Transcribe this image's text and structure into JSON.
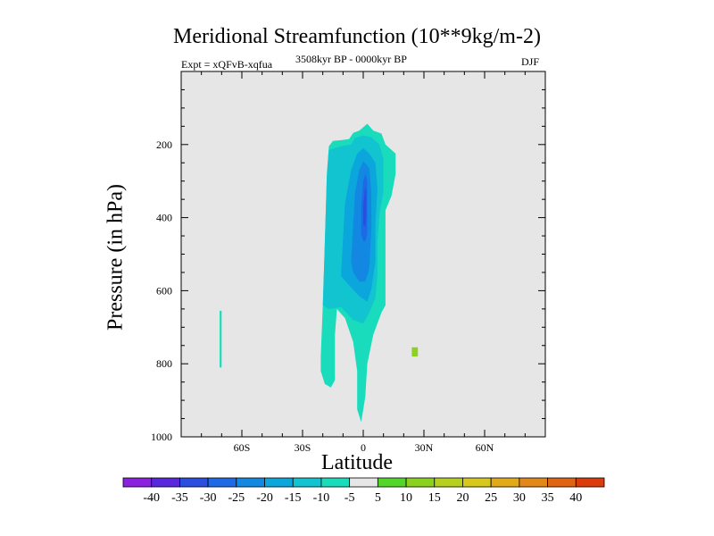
{
  "chart_data": {
    "type": "contour",
    "title": "Meridional Streamfunction (10**9kg/m-2)",
    "subtitle_left": "Expt = xQFvB-xqfua",
    "subtitle_center": "3508kyr BP - 0000kyr BP",
    "subtitle_right": "DJF",
    "xlabel": "Latitude",
    "ylabel": "Pressure (in hPa)",
    "xlim": [
      -90,
      90
    ],
    "ylim": [
      1000,
      0
    ],
    "x_ticks": [
      {
        "value": -60,
        "label": "60S"
      },
      {
        "value": -30,
        "label": "30S"
      },
      {
        "value": 0,
        "label": "0"
      },
      {
        "value": 30,
        "label": "30N"
      },
      {
        "value": 60,
        "label": "60N"
      }
    ],
    "y_ticks": [
      {
        "value": 200,
        "label": "200"
      },
      {
        "value": 400,
        "label": "400"
      },
      {
        "value": 600,
        "label": "600"
      },
      {
        "value": 800,
        "label": "800"
      },
      {
        "value": 1000,
        "label": "1000"
      }
    ],
    "background_color": "#e6e6e6",
    "colorbar": {
      "labels": [
        "-40",
        "-35",
        "-30",
        "-25",
        "-20",
        "-15",
        "-10",
        "-5",
        "5",
        "10",
        "15",
        "20",
        "25",
        "30",
        "35",
        "40"
      ],
      "colors": [
        "#8a22e0",
        "#5a28dc",
        "#2a4ee0",
        "#1e6ae6",
        "#1388e2",
        "#0aa6dc",
        "#12c4d0",
        "#18dcbc",
        "#e6e6e6",
        "#52d62a",
        "#8ad21e",
        "#b6d020",
        "#d6c81c",
        "#e0aa18",
        "#e28818",
        "#e06412",
        "#dc3c0c"
      ]
    },
    "regions": [
      {
        "level": "-5",
        "points": [
          [
            -21,
            780
          ],
          [
            -20,
            640
          ],
          [
            -19,
            480
          ],
          [
            -18,
            280
          ],
          [
            -17,
            205
          ],
          [
            -15,
            190
          ],
          [
            -11,
            188
          ],
          [
            -7,
            185
          ],
          [
            -5,
            168
          ],
          [
            -2,
            162
          ],
          [
            2,
            143
          ],
          [
            5,
            162
          ],
          [
            9,
            170
          ],
          [
            11,
            200
          ],
          [
            16,
            225
          ],
          [
            16,
            280
          ],
          [
            14,
            340
          ],
          [
            11,
            380
          ],
          [
            11,
            460
          ],
          [
            11,
            520
          ],
          [
            11,
            640
          ],
          [
            9,
            660
          ],
          [
            5,
            720
          ],
          [
            2,
            800
          ],
          [
            1,
            890
          ],
          [
            -1,
            960
          ],
          [
            -3,
            925
          ],
          [
            -3,
            820
          ],
          [
            -5,
            740
          ],
          [
            -9,
            675
          ],
          [
            -13,
            650
          ],
          [
            -14,
            720
          ],
          [
            -14,
            800
          ],
          [
            -14,
            845
          ],
          [
            -16,
            865
          ],
          [
            -19,
            855
          ],
          [
            -21,
            820
          ]
        ]
      },
      {
        "level": "-5",
        "points": [
          [
            -71,
            655
          ],
          [
            -70,
            655
          ],
          [
            -70,
            810
          ],
          [
            -71,
            810
          ]
        ]
      },
      {
        "level": "-10",
        "points": [
          [
            -20,
            640
          ],
          [
            -19,
            470
          ],
          [
            -18,
            290
          ],
          [
            -17,
            215
          ],
          [
            -11,
            205
          ],
          [
            -6,
            200
          ],
          [
            -4,
            182
          ],
          [
            0,
            175
          ],
          [
            4,
            180
          ],
          [
            8,
            200
          ],
          [
            10,
            240
          ],
          [
            10,
            330
          ],
          [
            8,
            390
          ],
          [
            7,
            470
          ],
          [
            7,
            560
          ],
          [
            6,
            620
          ],
          [
            3,
            660
          ],
          [
            0,
            690
          ],
          [
            -5,
            680
          ],
          [
            -11,
            645
          ],
          [
            -17,
            650
          ]
        ]
      },
      {
        "level": "-15",
        "points": [
          [
            -11,
            560
          ],
          [
            -10,
            460
          ],
          [
            -9,
            360
          ],
          [
            -6,
            270
          ],
          [
            -3,
            225
          ],
          [
            0,
            210
          ],
          [
            3,
            225
          ],
          [
            6,
            250
          ],
          [
            7,
            320
          ],
          [
            6,
            420
          ],
          [
            6,
            520
          ],
          [
            4,
            595
          ],
          [
            2,
            630
          ],
          [
            -2,
            615
          ],
          [
            -7,
            585
          ]
        ]
      },
      {
        "level": "-20",
        "points": [
          [
            -6,
            520
          ],
          [
            -5,
            420
          ],
          [
            -4,
            330
          ],
          [
            -2,
            270
          ],
          [
            0,
            245
          ],
          [
            3,
            265
          ],
          [
            4,
            330
          ],
          [
            4,
            430
          ],
          [
            3,
            540
          ],
          [
            1,
            575
          ],
          [
            -2,
            575
          ],
          [
            -5,
            550
          ]
        ]
      },
      {
        "level": "-25",
        "points": [
          [
            -1,
            445
          ],
          [
            -1,
            370
          ],
          [
            0,
            300
          ],
          [
            1,
            280
          ],
          [
            2,
            300
          ],
          [
            2,
            370
          ],
          [
            2,
            445
          ],
          [
            1,
            465
          ],
          [
            0,
            465
          ]
        ]
      },
      {
        "level": "-30",
        "points": [
          [
            0,
            420
          ],
          [
            0,
            370
          ],
          [
            1,
            315
          ],
          [
            1.5,
            330
          ],
          [
            1.5,
            400
          ],
          [
            1,
            425
          ]
        ]
      },
      {
        "level": "10",
        "points": [
          [
            24,
            755
          ],
          [
            27,
            755
          ],
          [
            27,
            780
          ],
          [
            24,
            780
          ]
        ]
      }
    ]
  }
}
